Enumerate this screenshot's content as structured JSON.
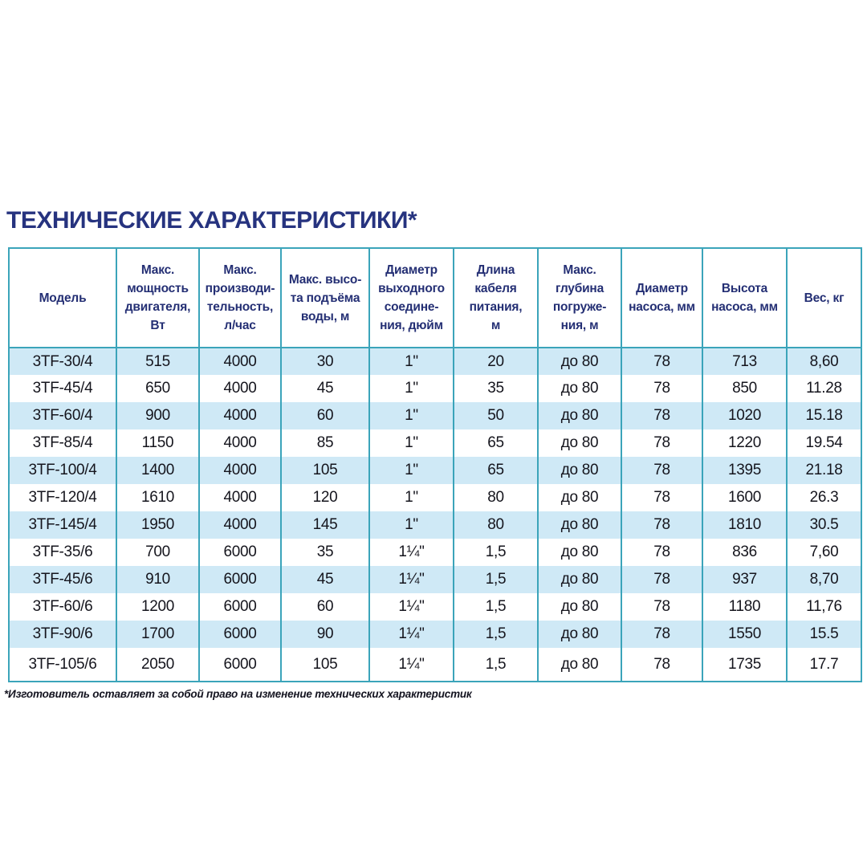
{
  "title": "ТЕХНИЧЕСКИЕ ХАРАКТЕРИСТИКИ*",
  "footnote": "*Изготовитель оставляет за собой право на изменение технических характеристик",
  "colors": {
    "title": "#26337f",
    "header_text": "#242f74",
    "table_border": "#3ba4ba",
    "row_stripe": "#cfe9f6",
    "data_text": "#15151d",
    "background": "#ffffff"
  },
  "table": {
    "columns": [
      "Модель",
      "Макс.\nмощность\nдвигателя,\nВт",
      "Макс.\nпроизводи-\nтельность,\nл/час",
      "Макс. высо-\nта подъёма\nводы, м",
      "Диаметр\nвыходного\nсоедине-\nния, дюйм",
      "Длина\nкабеля\nпитания,\nм",
      "Макс.\nглубина\nпогруже-\nния, м",
      "Диаметр\nнасоса, мм",
      "Высота\nнасоса, мм",
      "Вес, кг"
    ],
    "rows": [
      [
        "3TF-30/4",
        "515",
        "4000",
        "30",
        "1\"",
        "20",
        "до 80",
        "78",
        "713",
        "8,60"
      ],
      [
        "3TF-45/4",
        "650",
        "4000",
        "45",
        "1\"",
        "35",
        "до 80",
        "78",
        "850",
        "11.28"
      ],
      [
        "3TF-60/4",
        "900",
        "4000",
        "60",
        "1\"",
        "50",
        "до 80",
        "78",
        "1020",
        "15.18"
      ],
      [
        "3TF-85/4",
        "1150",
        "4000",
        "85",
        "1\"",
        "65",
        "до 80",
        "78",
        "1220",
        "19.54"
      ],
      [
        "3TF-100/4",
        "1400",
        "4000",
        "105",
        "1\"",
        "65",
        "до 80",
        "78",
        "1395",
        "21.18"
      ],
      [
        "3TF-120/4",
        "1610",
        "4000",
        "120",
        "1\"",
        "80",
        "до 80",
        "78",
        "1600",
        "26.3"
      ],
      [
        "3TF-145/4",
        "1950",
        "4000",
        "145",
        "1\"",
        "80",
        "до 80",
        "78",
        "1810",
        "30.5"
      ],
      [
        "3TF-35/6",
        "700",
        "6000",
        "35",
        "1¼\"",
        "1,5",
        "до 80",
        "78",
        "836",
        "7,60"
      ],
      [
        "3TF-45/6",
        "910",
        "6000",
        "45",
        "1¼\"",
        "1,5",
        "до 80",
        "78",
        "937",
        "8,70"
      ],
      [
        "3TF-60/6",
        "1200",
        "6000",
        "60",
        "1¼\"",
        "1,5",
        "до 80",
        "78",
        "1180",
        "11,76"
      ],
      [
        "3TF-90/6",
        "1700",
        "6000",
        "90",
        "1¼\"",
        "1,5",
        "до 80",
        "78",
        "1550",
        "15.5"
      ],
      [
        "3TF-105/6",
        "2050",
        "6000",
        "105",
        "1¼\"",
        "1,5",
        "до 80",
        "78",
        "1735",
        "17.7"
      ]
    ]
  }
}
